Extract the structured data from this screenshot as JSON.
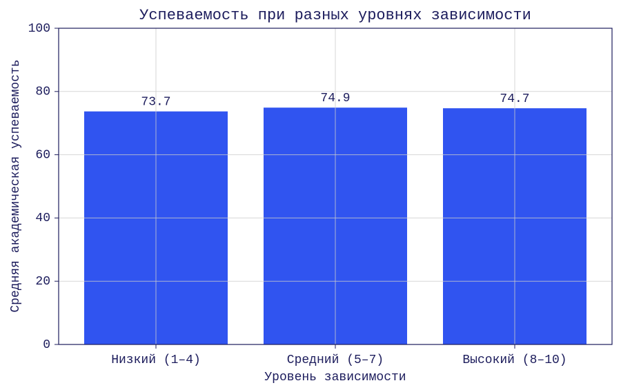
{
  "chart_data": {
    "type": "bar",
    "title": "Успеваемость при разных уровнях зависимости",
    "x_label": "Уровень зависимости",
    "y_label": "Средняя академическая успеваемость",
    "categories": [
      "Низкий (1–4)",
      "Средний (5–7)",
      "Высокий (8–10)"
    ],
    "values": [
      73.7,
      74.9,
      74.7
    ],
    "color": "#3054f0",
    "ylim": [
      0,
      100
    ],
    "yticks": [
      0,
      20,
      40,
      60,
      80,
      100
    ],
    "grid": true
  }
}
